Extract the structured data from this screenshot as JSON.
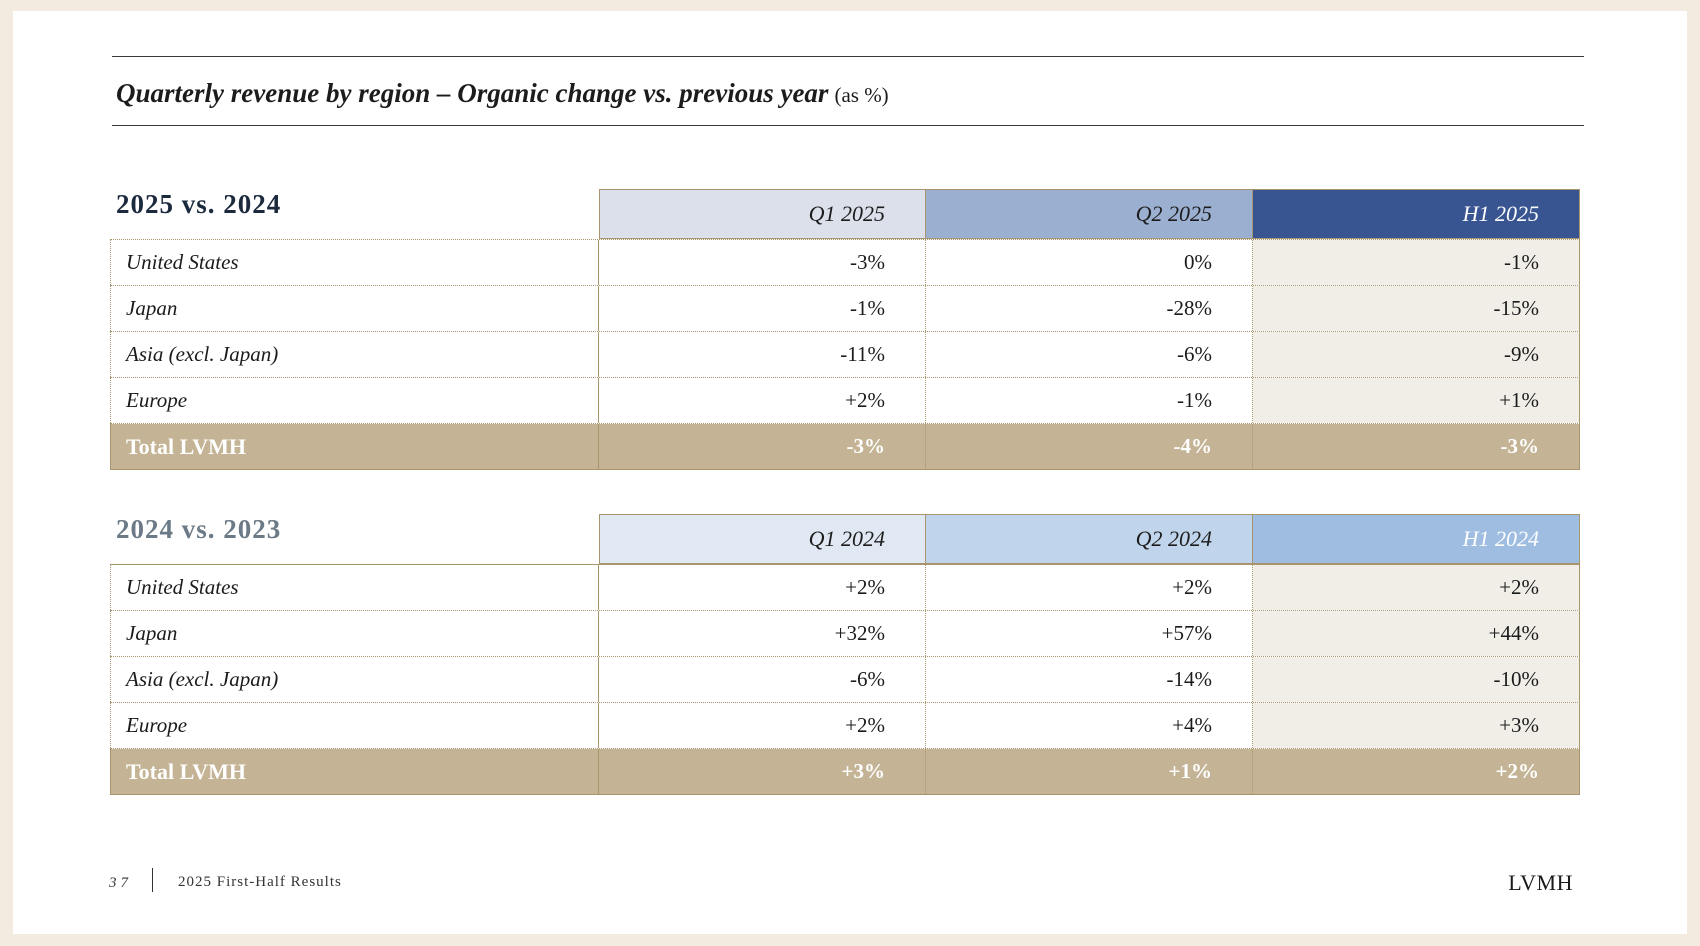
{
  "title": {
    "main": "Quarterly revenue by region – Organic change vs. previous year",
    "unit": "(as %)"
  },
  "colors": {
    "accent_total": "#c4b495",
    "table1_headers": [
      "#dbe0eb",
      "#9bafd0",
      "#385592"
    ],
    "table2_headers": [
      "#e0e9f3",
      "#c0d5eb",
      "#9fbde1"
    ],
    "table1_heading": "#1c2a3e",
    "table2_heading": "#6b7a86"
  },
  "table1": {
    "heading": "2025 vs. 2024",
    "columns": [
      "Q1 2025",
      "Q2 2025",
      "H1 2025"
    ],
    "rows": [
      {
        "label": "United States",
        "values": [
          "-3%",
          "0%",
          "-1%"
        ]
      },
      {
        "label": "Japan",
        "values": [
          "-1%",
          "-28%",
          "-15%"
        ]
      },
      {
        "label": "Asia (excl. Japan)",
        "values": [
          "-11%",
          "-6%",
          "-9%"
        ]
      },
      {
        "label": "Europe",
        "values": [
          "+2%",
          "-1%",
          "+1%"
        ]
      }
    ],
    "total": {
      "label": "Total LVMH",
      "values": [
        "-3%",
        "-4%",
        "-3%"
      ]
    }
  },
  "table2": {
    "heading": "2024 vs. 2023",
    "columns": [
      "Q1 2024",
      "Q2 2024",
      "H1 2024"
    ],
    "rows": [
      {
        "label": "United States",
        "values": [
          "+2%",
          "+2%",
          "+2%"
        ]
      },
      {
        "label": "Japan",
        "values": [
          "+32%",
          "+57%",
          "+44%"
        ]
      },
      {
        "label": "Asia (excl. Japan)",
        "values": [
          "-6%",
          "-14%",
          "-10%"
        ]
      },
      {
        "label": "Europe",
        "values": [
          "+2%",
          "+4%",
          "+3%"
        ]
      }
    ],
    "total": {
      "label": "Total LVMH",
      "values": [
        "+3%",
        "+1%",
        "+2%"
      ]
    }
  },
  "footer": {
    "page_number": "37",
    "document": "2025 First-Half Results",
    "brand": "LVMH"
  }
}
